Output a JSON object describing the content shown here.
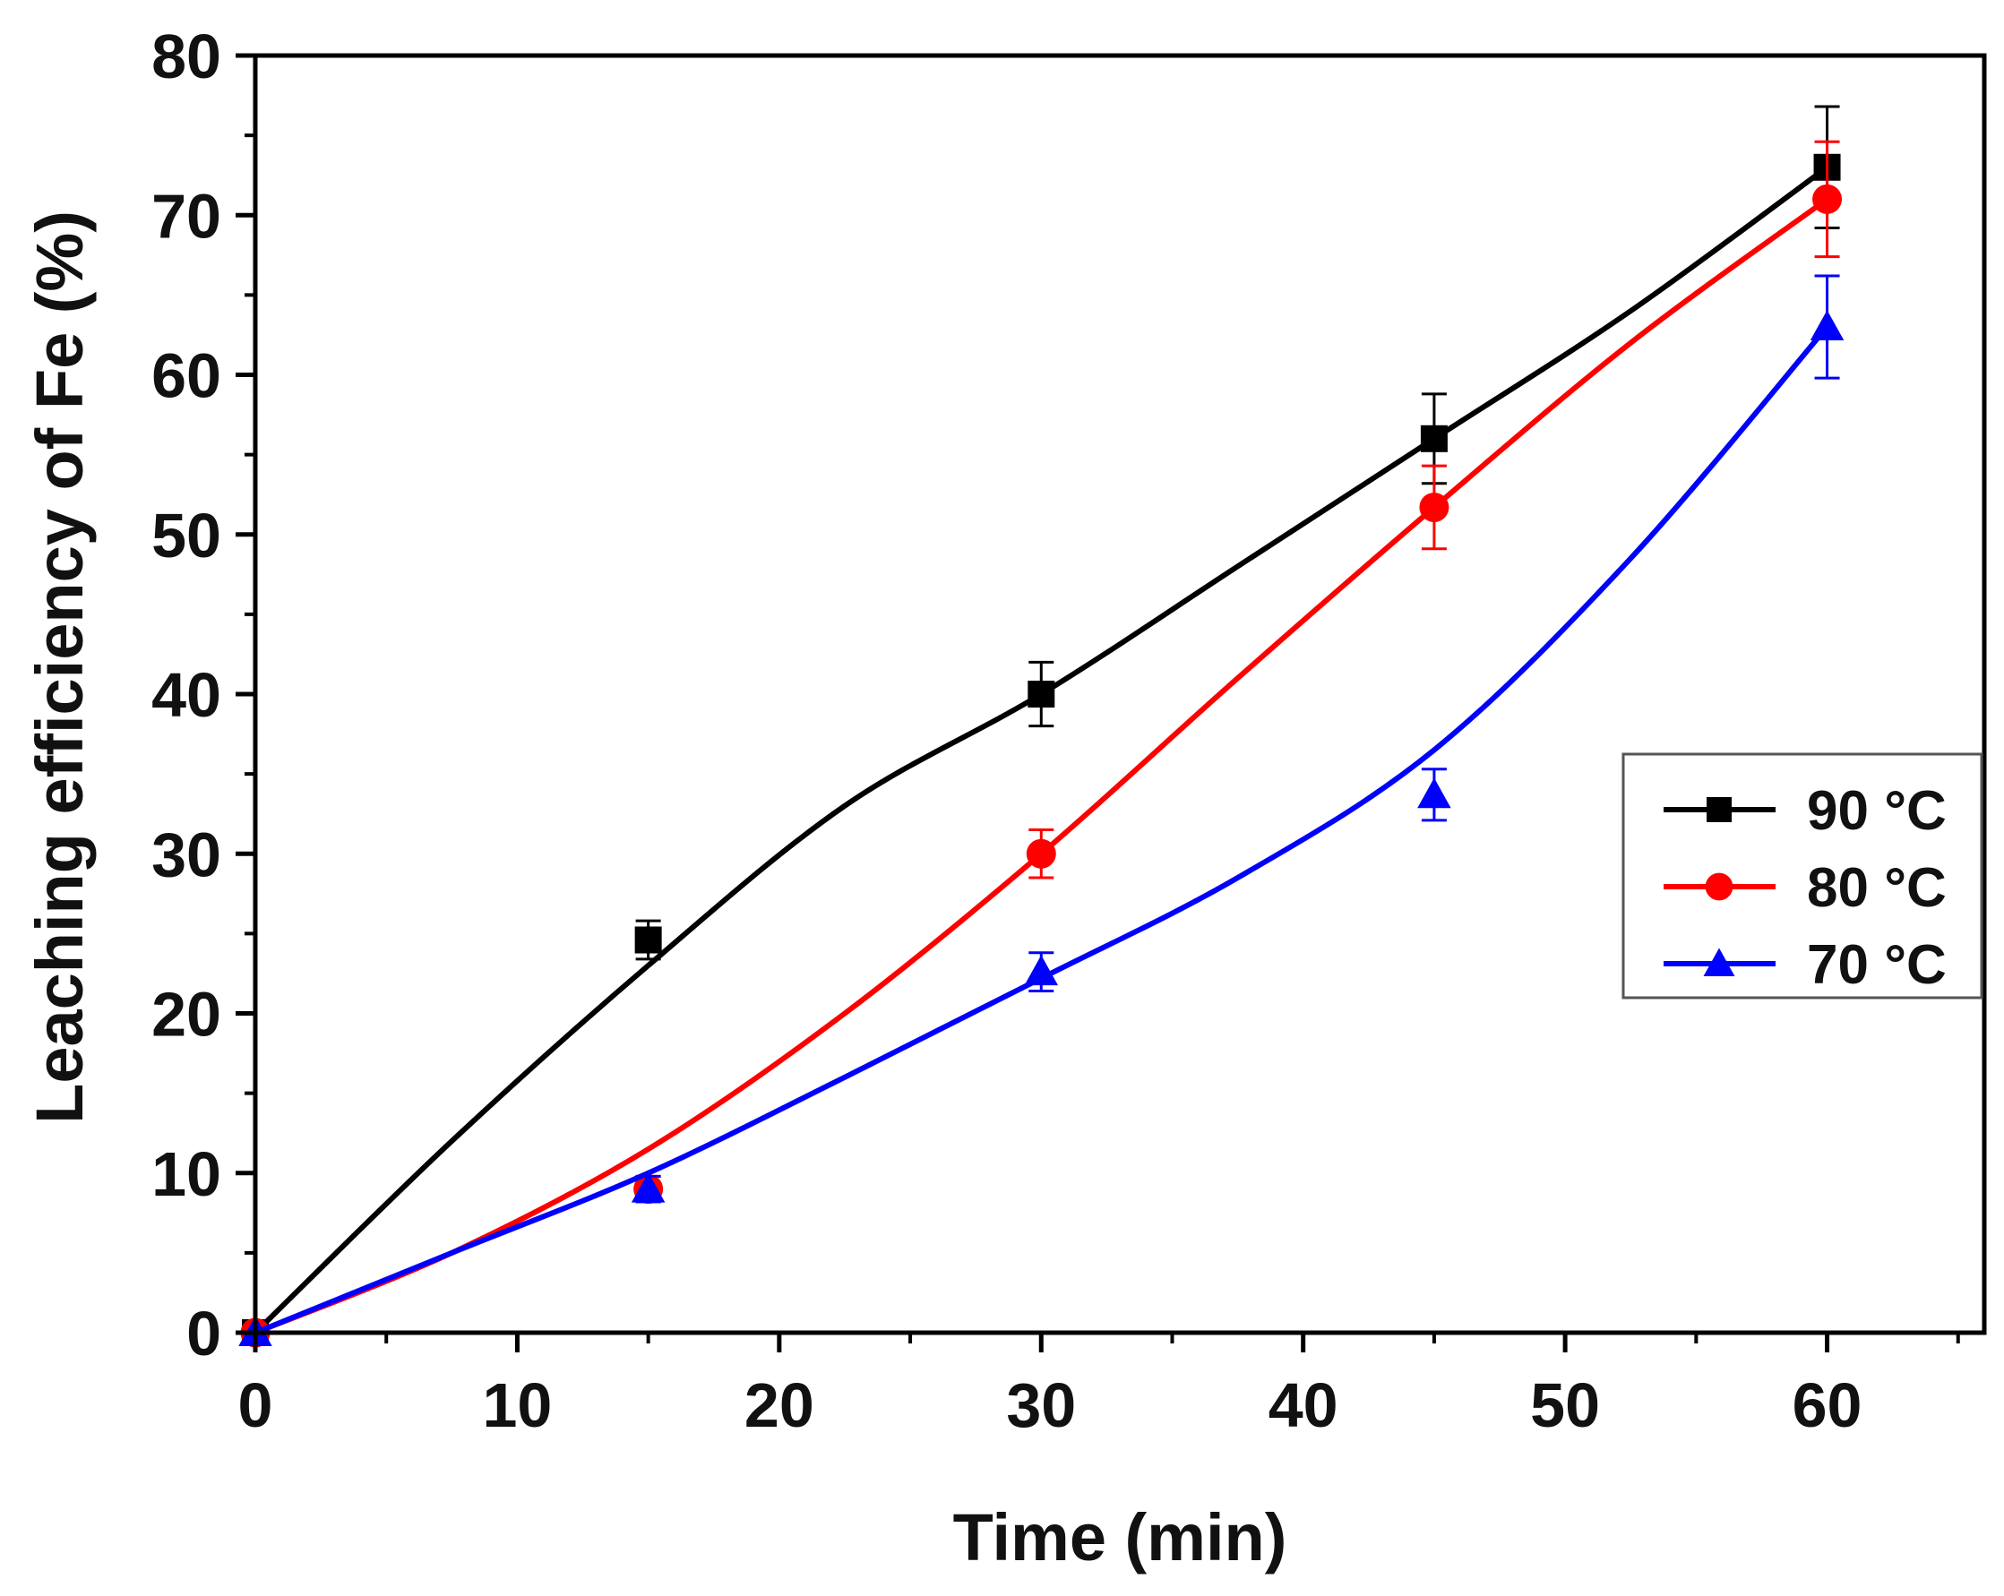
{
  "chart_data": {
    "type": "line",
    "title": "",
    "xlabel": "Time (min)",
    "ylabel": "Leaching efficiency of Fe (%)",
    "xlim": [
      0,
      66
    ],
    "ylim": [
      0,
      80
    ],
    "xticks": [
      0,
      10,
      20,
      30,
      40,
      50,
      60
    ],
    "yticks": [
      0,
      10,
      20,
      30,
      40,
      50,
      60,
      70,
      80
    ],
    "grid": false,
    "legend_position": "right",
    "series": [
      {
        "name": "90 °C",
        "color": "#000000",
        "marker": "square",
        "x": [
          0,
          15,
          30,
          45,
          60
        ],
        "y": [
          0,
          24.6,
          40.0,
          56.0,
          73.0
        ],
        "err": [
          0,
          1.2,
          2.0,
          2.8,
          3.8
        ],
        "fit": [
          0,
          12,
          23,
          33,
          40,
          48,
          56,
          64,
          73
        ]
      },
      {
        "name": "80 °C",
        "color": "#ff0000",
        "marker": "circle",
        "x": [
          0,
          15,
          30,
          45,
          60
        ],
        "y": [
          0,
          9.0,
          30.0,
          51.7,
          71.0
        ],
        "err": [
          0,
          0.8,
          1.5,
          2.6,
          3.6
        ],
        "fit": [
          0,
          5,
          11.5,
          20,
          30,
          41,
          51.7,
          62,
          71
        ]
      },
      {
        "name": "70 °C",
        "color": "#0000ff",
        "marker": "triangle",
        "x": [
          0,
          15,
          30,
          45,
          60
        ],
        "y": [
          0,
          9.0,
          22.6,
          33.7,
          63.0
        ],
        "err": [
          0,
          0.8,
          1.2,
          1.6,
          3.2
        ],
        "fit": [
          0,
          5,
          10,
          16,
          22.2,
          28.5,
          36.5,
          48.5,
          63
        ]
      }
    ]
  }
}
